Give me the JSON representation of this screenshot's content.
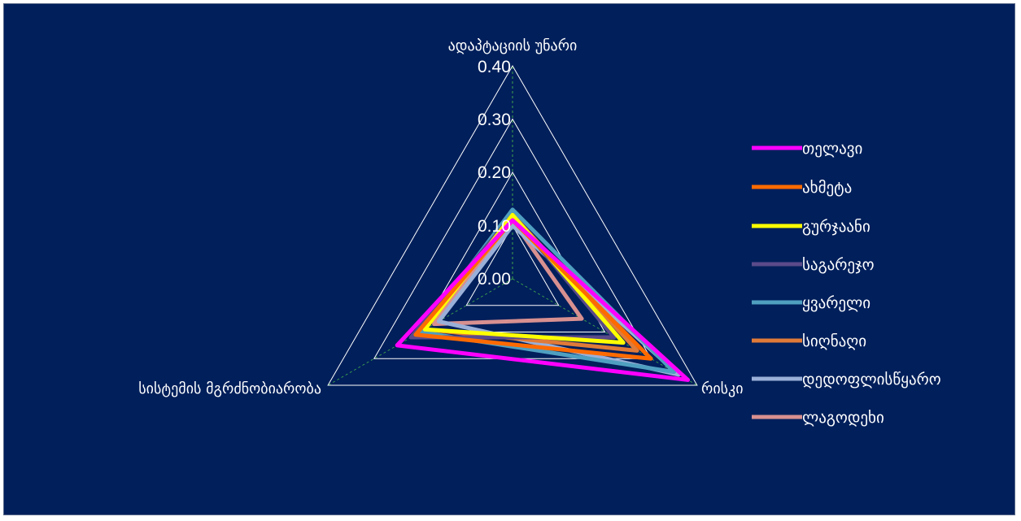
{
  "chart_data": {
    "type": "radar",
    "axes": [
      "ადაპტაციის უნარი",
      "რისკი",
      "სისტემის მგრძნობიარობა"
    ],
    "ticks": [
      "0.00",
      "0.10",
      "0.20",
      "0.30",
      "0.40"
    ],
    "range": [
      0,
      0.4
    ],
    "grid": true,
    "legend_position": "right",
    "series": [
      {
        "name": "თელავი",
        "color": "#ff00ff",
        "values": [
          0.11,
          0.38,
          0.25
        ]
      },
      {
        "name": "ახმეტა",
        "color": "#ff6a00",
        "values": [
          0.11,
          0.3,
          0.21
        ]
      },
      {
        "name": "გურჯაანი",
        "color": "#ffff00",
        "values": [
          0.12,
          0.24,
          0.19
        ]
      },
      {
        "name": "საგარეჯო",
        "color": "#5a4a8a",
        "values": [
          0.12,
          0.22,
          0.22
        ]
      },
      {
        "name": "ყვარელი",
        "color": "#4f9fc0",
        "values": [
          0.13,
          0.35,
          0.2
        ]
      },
      {
        "name": "სიღნაღი",
        "color": "#e07a38",
        "values": [
          0.12,
          0.27,
          0.19
        ]
      },
      {
        "name": "დედოფლისწყარო",
        "color": "#9ab0d8",
        "values": [
          0.1,
          0.36,
          0.16
        ]
      },
      {
        "name": "ლაგოდეხი",
        "color": "#d89090",
        "values": [
          0.11,
          0.15,
          0.17
        ]
      }
    ]
  }
}
